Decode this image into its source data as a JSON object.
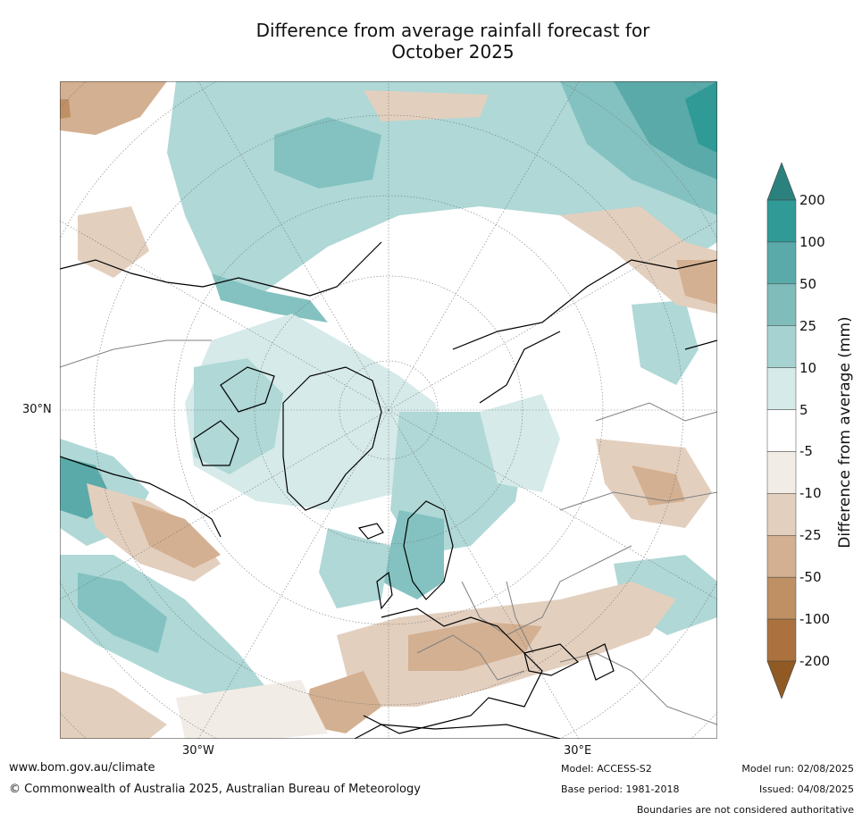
{
  "title": {
    "line1": "Difference from average rainfall forecast for",
    "line2": "October 2025"
  },
  "map": {
    "projection": "north-polar-stereographic",
    "lat_label": "30°N",
    "lon_labels": [
      "30°W",
      "30°E"
    ],
    "palette": {
      "wet_200": "#2b817d",
      "wet_100": "#2f9a96",
      "wet_50": "#5aaaa9",
      "wet_25": "#83c2c0",
      "wet_10": "#afd8d6",
      "wet_5": "#d5eae9",
      "neutral": "#ffffff",
      "dry_5": "#f2ece6",
      "dry_10": "#e3cfbe",
      "dry_25": "#d3b091",
      "dry_50": "#bf9064",
      "dry_100": "#ab723f",
      "dry_200": "#915a24",
      "coastline": "#000000",
      "border": "#808080"
    }
  },
  "colorbar": {
    "title": "Difference from average (mm)",
    "labels": [
      "200",
      "100",
      "50",
      "25",
      "10",
      "5",
      "-5",
      "-10",
      "-25",
      "-50",
      "-100",
      "-200"
    ],
    "colors": [
      "#2f9a96",
      "#5aaaa9",
      "#7fbcba",
      "#a6d3d1",
      "#d5eae9",
      "#ffffff",
      "#f2ece6",
      "#e3cfbe",
      "#d3b091",
      "#bf9064",
      "#ab723f"
    ],
    "extend_top": "#2b817d",
    "extend_bottom": "#915a24"
  },
  "footer": {
    "url": "www.bom.gov.au/climate",
    "copyright": "© Commonwealth of Australia 2025, Australian Bureau of Meteorology",
    "model": "Model: ACCESS-S2",
    "base_period": "Base period: 1981-2018",
    "model_run": "Model run: 02/08/2025",
    "issued": "Issued: 04/08/2025",
    "disclaimer": "Boundaries are not considered authoritative"
  }
}
